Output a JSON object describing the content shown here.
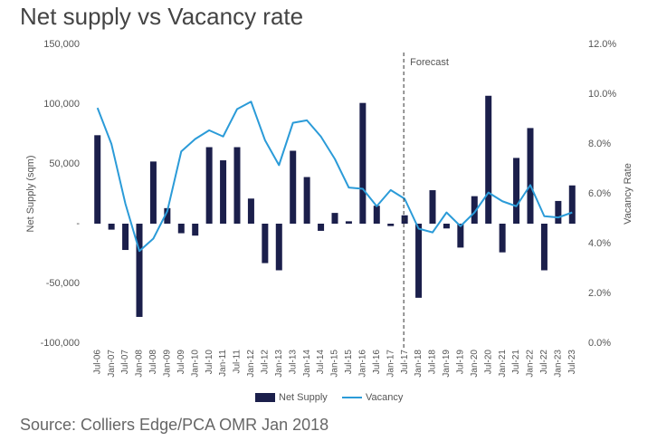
{
  "chart_data": {
    "type": "bar",
    "title": "Net supply vs Vacancy rate",
    "source": "Source: Colliers Edge/PCA OMR Jan 2018",
    "ylabel": "Net Supply (sqm)",
    "y2label": "Vacancy Rate",
    "categories": [
      "Jul-06",
      "Jan-07",
      "Jul-07",
      "Jan-08",
      "Jul-08",
      "Jan-09",
      "Jul-09",
      "Jan-10",
      "Jul-10",
      "Jan-11",
      "Jul-11",
      "Jan-12",
      "Jul-12",
      "Jan-13",
      "Jul-13",
      "Jan-14",
      "Jul-14",
      "Jan-15",
      "Jul-15",
      "Jan-16",
      "Jul-16",
      "Jan-17",
      "Jul-17",
      "Jan-18",
      "Jul-18",
      "Jan-19",
      "Jul-19",
      "Jan-20",
      "Jul-20",
      "Jan-21",
      "Jul-21",
      "Jan-22",
      "Jul-22",
      "Jan-23",
      "Jul-23"
    ],
    "series": [
      {
        "name": "Net Supply",
        "type": "bar",
        "color": "#1b1f4b",
        "values": [
          74000,
          -5000,
          -22000,
          -78000,
          52000,
          13000,
          -8000,
          -10000,
          64000,
          53000,
          64000,
          21000,
          -33000,
          -39000,
          61000,
          39000,
          -6000,
          9000,
          2000,
          101000,
          15000,
          -2000,
          7000,
          -62000,
          28000,
          -4000,
          -20000,
          23000,
          107000,
          -24000,
          55000,
          80000,
          -39000,
          19000,
          32000
        ]
      },
      {
        "name": "Vacancy",
        "type": "line",
        "axis": "y2",
        "color": "#2b9bd8",
        "values": [
          9.45,
          8.0,
          5.6,
          3.7,
          4.2,
          5.3,
          7.7,
          8.2,
          8.55,
          8.3,
          9.4,
          9.7,
          8.15,
          7.15,
          8.85,
          8.95,
          8.3,
          7.4,
          6.25,
          6.2,
          5.5,
          6.15,
          5.8,
          4.6,
          4.45,
          5.25,
          4.7,
          5.25,
          6.05,
          5.7,
          5.5,
          6.35,
          5.1,
          5.05,
          5.25
        ]
      }
    ],
    "ylim": [
      -100000,
      150000
    ],
    "yticks": [
      {
        "value": -100000,
        "label": "-100,000"
      },
      {
        "value": -50000,
        "label": "-50,000"
      },
      {
        "value": 0,
        "label": "-"
      },
      {
        "value": 50000,
        "label": "50,000"
      },
      {
        "value": 100000,
        "label": "100,000"
      },
      {
        "value": 150000,
        "label": "150,000"
      }
    ],
    "y2lim": [
      0,
      12
    ],
    "y2ticks": [
      {
        "value": 0,
        "label": "0.0%"
      },
      {
        "value": 2,
        "label": "2.0%"
      },
      {
        "value": 4,
        "label": "4.0%"
      },
      {
        "value": 6,
        "label": "6.0%"
      },
      {
        "value": 8,
        "label": "8.0%"
      },
      {
        "value": 10,
        "label": "10.0%"
      },
      {
        "value": 12,
        "label": "12.0%"
      }
    ],
    "annotation": {
      "text": "Forecast",
      "x": "Jul-17"
    },
    "legend": "bottom"
  }
}
